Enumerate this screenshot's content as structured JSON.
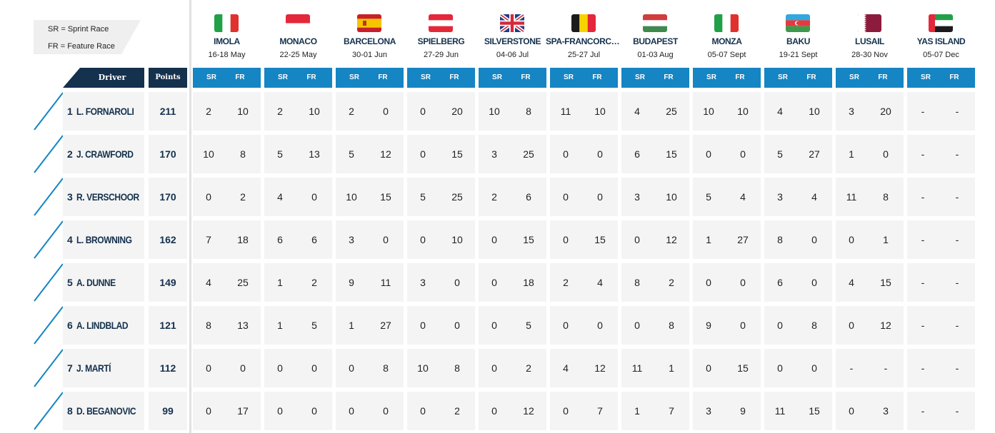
{
  "legend": {
    "line1": "SR = Sprint Race",
    "line2": "FR = Feature Race"
  },
  "header": {
    "driver": "Driver",
    "points": "Points",
    "sr": "SR",
    "fr": "FR"
  },
  "races": [
    {
      "name": "IMOLA",
      "dates": "16-18 May",
      "flag": "italy-flag"
    },
    {
      "name": "MONACO",
      "dates": "22-25 May",
      "flag": "monaco-flag"
    },
    {
      "name": "BARCELONA",
      "dates": "30-01 Jun",
      "flag": "spain-flag"
    },
    {
      "name": "SPIELBERG",
      "dates": "27-29 Jun",
      "flag": "austria-flag"
    },
    {
      "name": "SILVERSTONE",
      "dates": "04-06 Jul",
      "flag": "uk-flag"
    },
    {
      "name": "SPA-FRANCORCHAMPS",
      "dates": "25-27 Jul",
      "flag": "belgium-flag"
    },
    {
      "name": "BUDAPEST",
      "dates": "01-03 Aug",
      "flag": "hungary-flag"
    },
    {
      "name": "MONZA",
      "dates": "05-07 Sept",
      "flag": "italy-flag"
    },
    {
      "name": "BAKU",
      "dates": "19-21 Sept",
      "flag": "azerbaijan-flag"
    },
    {
      "name": "LUSAIL",
      "dates": "28-30 Nov",
      "flag": "qatar-flag"
    },
    {
      "name": "YAS ISLAND",
      "dates": "05-07 Dec",
      "flag": "uae-flag"
    }
  ],
  "drivers": [
    {
      "pos": "1",
      "name": "L. FORNAROLI",
      "points": "211",
      "results": [
        [
          "2",
          "10"
        ],
        [
          "2",
          "10"
        ],
        [
          "2",
          "0"
        ],
        [
          "0",
          "20"
        ],
        [
          "10",
          "8"
        ],
        [
          "11",
          "10"
        ],
        [
          "4",
          "25"
        ],
        [
          "10",
          "10"
        ],
        [
          "4",
          "10"
        ],
        [
          "3",
          "20"
        ],
        [
          "-",
          "-"
        ]
      ]
    },
    {
      "pos": "2",
      "name": "J. CRAWFORD",
      "points": "170",
      "results": [
        [
          "10",
          "8"
        ],
        [
          "5",
          "13"
        ],
        [
          "5",
          "12"
        ],
        [
          "0",
          "15"
        ],
        [
          "3",
          "25"
        ],
        [
          "0",
          "0"
        ],
        [
          "6",
          "15"
        ],
        [
          "0",
          "0"
        ],
        [
          "5",
          "27"
        ],
        [
          "1",
          "0"
        ],
        [
          "-",
          "-"
        ]
      ]
    },
    {
      "pos": "3",
      "name": "R. VERSCHOOR",
      "points": "170",
      "results": [
        [
          "0",
          "2"
        ],
        [
          "4",
          "0"
        ],
        [
          "10",
          "15"
        ],
        [
          "5",
          "25"
        ],
        [
          "2",
          "6"
        ],
        [
          "0",
          "0"
        ],
        [
          "3",
          "10"
        ],
        [
          "5",
          "4"
        ],
        [
          "3",
          "4"
        ],
        [
          "11",
          "8"
        ],
        [
          "-",
          "-"
        ]
      ]
    },
    {
      "pos": "4",
      "name": "L. BROWNING",
      "points": "162",
      "results": [
        [
          "7",
          "18"
        ],
        [
          "6",
          "6"
        ],
        [
          "3",
          "0"
        ],
        [
          "0",
          "10"
        ],
        [
          "0",
          "15"
        ],
        [
          "0",
          "15"
        ],
        [
          "0",
          "12"
        ],
        [
          "1",
          "27"
        ],
        [
          "8",
          "0"
        ],
        [
          "0",
          "1"
        ],
        [
          "-",
          "-"
        ]
      ]
    },
    {
      "pos": "5",
      "name": "A. DUNNE",
      "points": "149",
      "results": [
        [
          "4",
          "25"
        ],
        [
          "1",
          "2"
        ],
        [
          "9",
          "11"
        ],
        [
          "3",
          "0"
        ],
        [
          "0",
          "18"
        ],
        [
          "2",
          "4"
        ],
        [
          "8",
          "2"
        ],
        [
          "0",
          "0"
        ],
        [
          "6",
          "0"
        ],
        [
          "4",
          "15"
        ],
        [
          "-",
          "-"
        ]
      ]
    },
    {
      "pos": "6",
      "name": "A. LINDBLAD",
      "points": "121",
      "results": [
        [
          "8",
          "13"
        ],
        [
          "1",
          "5"
        ],
        [
          "1",
          "27"
        ],
        [
          "0",
          "0"
        ],
        [
          "0",
          "5"
        ],
        [
          "0",
          "0"
        ],
        [
          "0",
          "8"
        ],
        [
          "9",
          "0"
        ],
        [
          "0",
          "8"
        ],
        [
          "0",
          "12"
        ],
        [
          "-",
          "-"
        ]
      ]
    },
    {
      "pos": "7",
      "name": "J. MARTÍ",
      "points": "112",
      "results": [
        [
          "0",
          "0"
        ],
        [
          "0",
          "0"
        ],
        [
          "0",
          "8"
        ],
        [
          "10",
          "8"
        ],
        [
          "0",
          "2"
        ],
        [
          "4",
          "12"
        ],
        [
          "11",
          "1"
        ],
        [
          "0",
          "15"
        ],
        [
          "0",
          "0"
        ],
        [
          "-",
          "-"
        ],
        [
          "-",
          "-"
        ]
      ]
    },
    {
      "pos": "8",
      "name": "D. BEGANOVIC",
      "points": "99",
      "results": [
        [
          "0",
          "17"
        ],
        [
          "0",
          "0"
        ],
        [
          "0",
          "0"
        ],
        [
          "0",
          "2"
        ],
        [
          "0",
          "12"
        ],
        [
          "0",
          "7"
        ],
        [
          "1",
          "7"
        ],
        [
          "3",
          "9"
        ],
        [
          "11",
          "15"
        ],
        [
          "0",
          "3"
        ],
        [
          "-",
          "-"
        ]
      ]
    }
  ],
  "colors": {
    "navy": "#14314d",
    "blue": "#1585c3",
    "cell": "#f4f4f4"
  }
}
